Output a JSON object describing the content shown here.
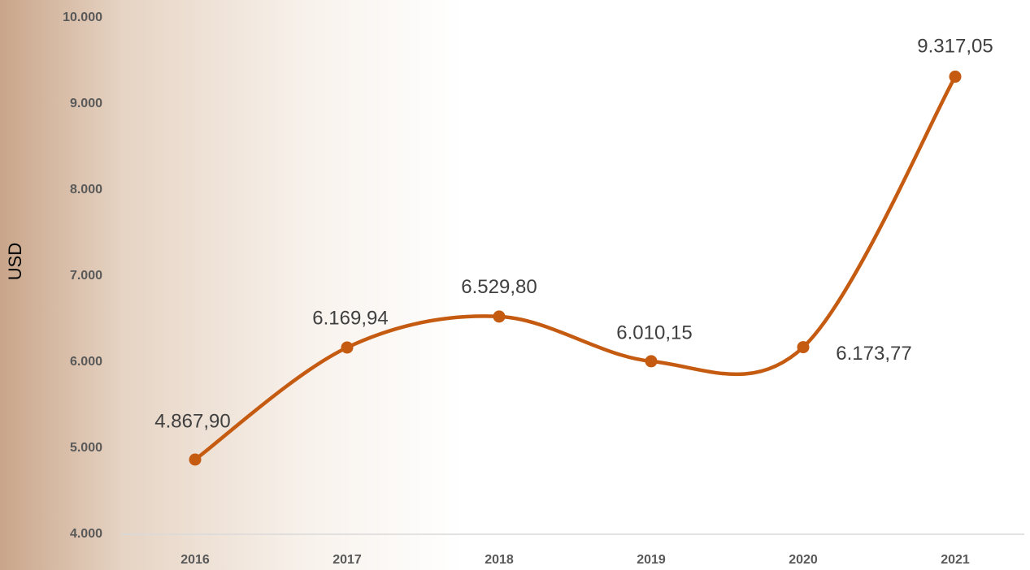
{
  "chart_data": {
    "type": "line",
    "y_label": "USD",
    "categories": [
      "2016",
      "2017",
      "2018",
      "2019",
      "2020",
      "2021"
    ],
    "series": [
      {
        "name": "USD",
        "color": "#c55a11",
        "values": [
          4867.9,
          6169.94,
          6529.8,
          6010.15,
          6173.77,
          9317.05
        ],
        "value_labels": [
          "4.867,90",
          "6.169,94",
          "6.529,80",
          "6.010,15",
          "6.173,77",
          "9.317,05"
        ]
      }
    ],
    "ylim": [
      4000,
      10000
    ],
    "yticks": [
      {
        "value": 4000,
        "label": "4.000"
      },
      {
        "value": 5000,
        "label": "5.000"
      },
      {
        "value": 6000,
        "label": "6.000"
      },
      {
        "value": 7000,
        "label": "7.000"
      },
      {
        "value": 8000,
        "label": "8.000"
      },
      {
        "value": 9000,
        "label": "9.000"
      },
      {
        "value": 10000,
        "label": "10.000"
      }
    ],
    "smooth": true
  }
}
